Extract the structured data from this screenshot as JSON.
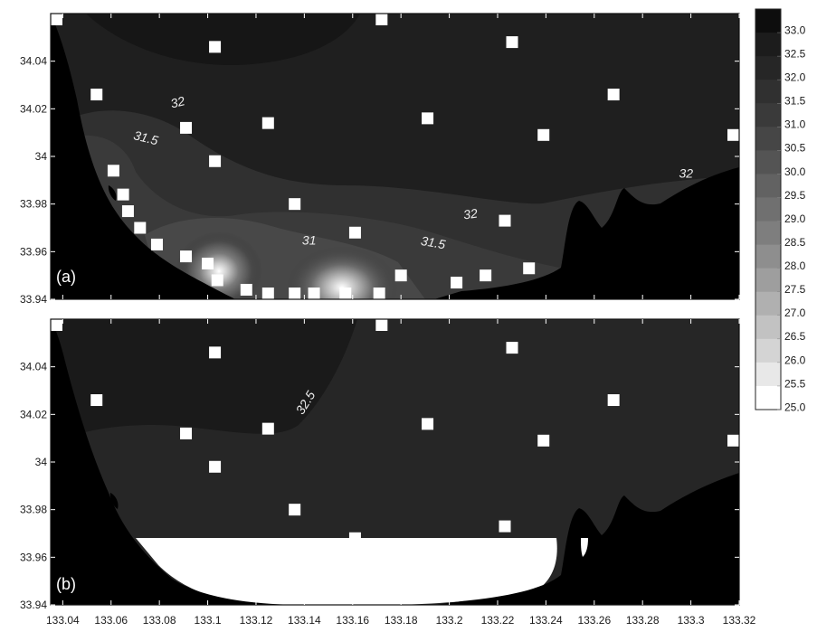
{
  "chart_data": {
    "type": "heatmap",
    "colorbar": {
      "levels": [
        33.0,
        32.5,
        32.0,
        31.5,
        31.0,
        30.5,
        30.0,
        29.5,
        29.0,
        28.5,
        28.0,
        27.5,
        27.0,
        26.5,
        26.0,
        25.5,
        25.0
      ],
      "labels": [
        "33.0",
        "32.5",
        "32.0",
        "31.5",
        "31.0",
        "30.5",
        "30.0",
        "29.5",
        "29.0",
        "28.5",
        "28.0",
        "27.5",
        "27.0",
        "26.5",
        "26.0",
        "25.5",
        "25.0"
      ],
      "colors": [
        "#0d0d0d",
        "#1c1c1c",
        "#262626",
        "#303030",
        "#3a3a3a",
        "#464646",
        "#545454",
        "#626262",
        "#707070",
        "#7e7e7e",
        "#8e8e8e",
        "#9e9e9e",
        "#b0b0b0",
        "#c2c2c2",
        "#d4d4d4",
        "#e8e8e8",
        "#ffffff"
      ]
    },
    "x_ticks": [
      "133.04",
      "133.06",
      "133.08",
      "133.1",
      "133.12",
      "133.14",
      "133.16",
      "133.18",
      "133.2",
      "133.22",
      "133.24",
      "133.26",
      "133.28",
      "133.3",
      "133.32"
    ],
    "xlim": [
      133.035,
      133.32
    ],
    "y_ticks": [
      "34.04",
      "34.02",
      "34",
      "33.98",
      "33.96",
      "33.94"
    ],
    "ylim": [
      33.94,
      34.06
    ],
    "stations": [
      [
        133.036,
        34.059
      ],
      [
        133.103,
        34.046
      ],
      [
        133.172,
        34.058
      ],
      [
        133.226,
        34.048
      ],
      [
        133.054,
        34.026
      ],
      [
        133.268,
        34.026
      ],
      [
        133.091,
        34.012
      ],
      [
        133.125,
        34.014
      ],
      [
        133.191,
        34.016
      ],
      [
        133.239,
        34.009
      ],
      [
        133.32,
        34.009
      ],
      [
        133.103,
        33.998
      ],
      [
        133.136,
        33.98
      ],
      [
        133.223,
        33.973
      ],
      [
        133.161,
        33.968
      ]
    ],
    "stations_a_extra": [
      [
        133.061,
        33.994
      ],
      [
        133.065,
        33.984
      ],
      [
        133.067,
        33.977
      ],
      [
        133.072,
        33.97
      ],
      [
        133.079,
        33.963
      ],
      [
        133.091,
        33.958
      ],
      [
        133.1,
        33.955
      ],
      [
        133.104,
        33.948
      ],
      [
        133.116,
        33.944
      ],
      [
        133.125,
        33.942
      ],
      [
        133.136,
        33.942
      ],
      [
        133.144,
        33.942
      ],
      [
        133.157,
        33.941
      ],
      [
        133.171,
        33.942
      ],
      [
        133.18,
        33.95
      ],
      [
        133.203,
        33.947
      ],
      [
        133.215,
        33.95
      ],
      [
        133.233,
        33.953
      ]
    ],
    "panels": [
      {
        "tag": "(a)",
        "contour_labels": [
          {
            "text": "32",
            "x": 133.088,
            "y": 34.021,
            "angle": -14
          },
          {
            "text": "31.5",
            "x": 133.074,
            "y": 34.006,
            "angle": 14
          },
          {
            "text": "32",
            "x": 133.209,
            "y": 33.974,
            "angle": -8
          },
          {
            "text": "31",
            "x": 133.142,
            "y": 33.963,
            "angle": 0
          },
          {
            "text": "31.5",
            "x": 133.193,
            "y": 33.962,
            "angle": 10
          },
          {
            "text": "32",
            "x": 133.298,
            "y": 33.991,
            "angle": 0
          }
        ]
      },
      {
        "tag": "(b)",
        "contour_labels": [
          {
            "text": "32.5",
            "x": 133.142,
            "y": 34.024,
            "angle": -58
          }
        ]
      }
    ]
  }
}
